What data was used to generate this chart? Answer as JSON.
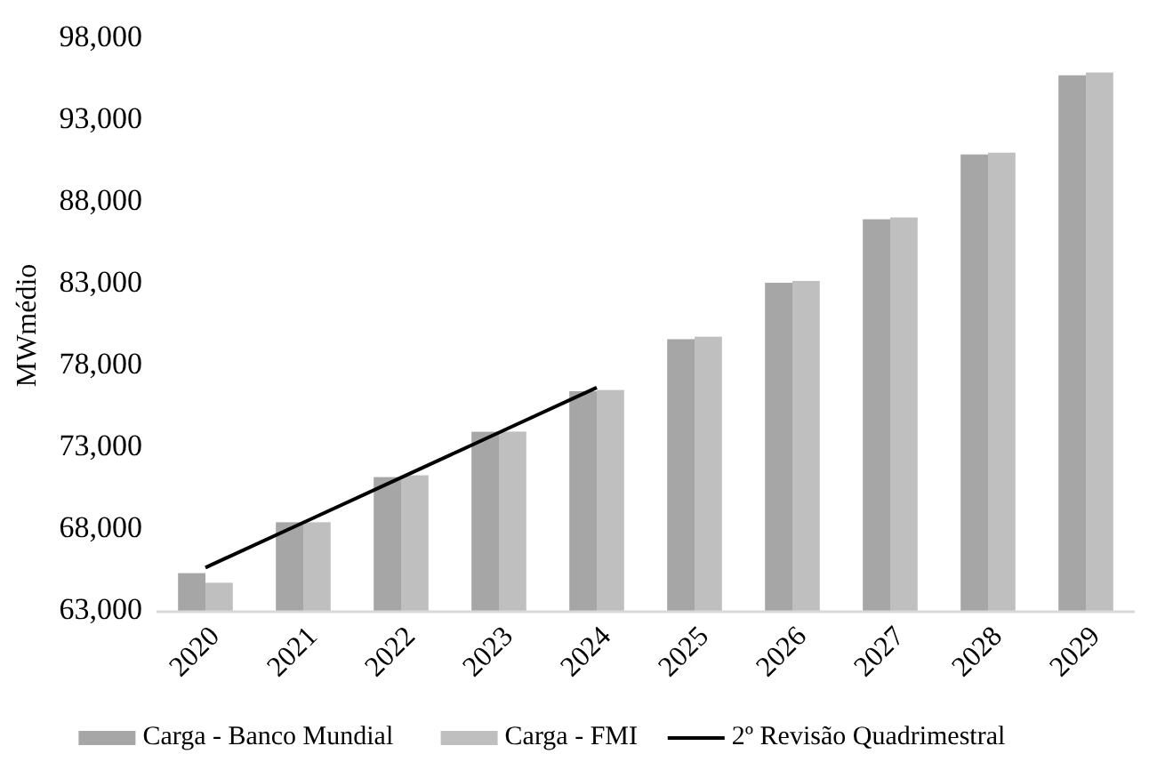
{
  "chart_data": {
    "type": "bar",
    "ylabel": "MWmédio",
    "categories": [
      "2020",
      "2021",
      "2022",
      "2023",
      "2024",
      "2025",
      "2026",
      "2027",
      "2028",
      "2029"
    ],
    "series": [
      {
        "name": "Carga - Banco Mundial",
        "color": "#a6a6a6",
        "values": [
          65360,
          68470,
          71230,
          74000,
          76480,
          79660,
          83110,
          86990,
          90950,
          95790
        ]
      },
      {
        "name": "Carga - FMI",
        "color": "#bfbfbf",
        "values": [
          64770,
          68470,
          71340,
          74010,
          76550,
          79810,
          83220,
          87100,
          91060,
          95960
        ]
      },
      {
        "name": "2º Revisão Quadrimestral",
        "type": "line",
        "color": "#000000",
        "values": [
          65700,
          68450,
          71200,
          73950,
          76700,
          null,
          null,
          null,
          null,
          null
        ]
      }
    ],
    "ylim": [
      63000,
      98000
    ],
    "yticks": [
      {
        "value": 63000,
        "label": "63,000"
      },
      {
        "value": 68000,
        "label": "68,000"
      },
      {
        "value": 73000,
        "label": "73,000"
      },
      {
        "value": 78000,
        "label": "78,000"
      },
      {
        "value": 83000,
        "label": "83,000"
      },
      {
        "value": 88000,
        "label": "88,000"
      },
      {
        "value": 93000,
        "label": "93,000"
      },
      {
        "value": 98000,
        "label": "98,000"
      }
    ],
    "grid": false,
    "legend": "bottom"
  }
}
